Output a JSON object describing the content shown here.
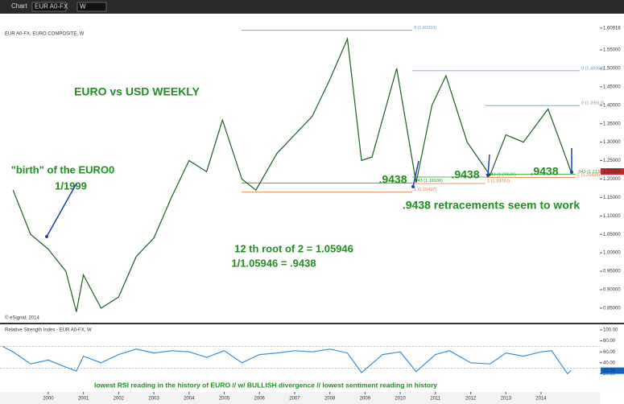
{
  "toolbar": {
    "window": "Chart",
    "symbol": "EUR A0-FX",
    "interval": "W"
  },
  "chart_data": [
    {
      "type": "line",
      "title": "EUR A0-FX, EURO COMPOSITE, W",
      "series": [
        {
          "name": "EUR A0-FX",
          "color": "#1b5e20",
          "x": [
            1999.0,
            1999.5,
            2000.0,
            2000.5,
            2000.8,
            2001.0,
            2001.5,
            2002.0,
            2002.5,
            2003.0,
            2003.5,
            2004.0,
            2004.5,
            2004.95,
            2005.5,
            2005.9,
            2006.5,
            2007.0,
            2007.5,
            2008.0,
            2008.5,
            2008.9,
            2009.2,
            2009.9,
            2010.45,
            2010.9,
            2011.3,
            2011.9,
            2012.55,
            2013.0,
            2013.5,
            2014.2,
            2014.7,
            2014.85
          ],
          "values": [
            1.17,
            1.05,
            1.01,
            0.95,
            0.84,
            0.94,
            0.85,
            0.88,
            0.99,
            1.04,
            1.15,
            1.25,
            1.22,
            1.36,
            1.2,
            1.17,
            1.27,
            1.32,
            1.37,
            1.47,
            1.58,
            1.25,
            1.26,
            1.5,
            1.19,
            1.4,
            1.48,
            1.3,
            1.21,
            1.32,
            1.3,
            1.39,
            1.26,
            1.22
          ]
        }
      ],
      "xlim": [
        1998.63,
        2015.67
      ],
      "ylim": [
        0.817,
        1.609
      ],
      "yticks": [
        {
          "value": 0.85,
          "label": "0.85000"
        },
        {
          "value": 0.9,
          "label": "0.90000"
        },
        {
          "value": 0.95,
          "label": "0.95000"
        },
        {
          "value": 1.0,
          "label": "1.00000"
        },
        {
          "value": 1.05,
          "label": "1.05000"
        },
        {
          "value": 1.1,
          "label": "1.10000"
        },
        {
          "value": 1.15,
          "label": "1.15000"
        },
        {
          "value": 1.2,
          "label": "1.20000"
        },
        {
          "value": 1.25,
          "label": "1.25000"
        },
        {
          "value": 1.3,
          "label": "1.30000"
        },
        {
          "value": 1.35,
          "label": "1.35000"
        },
        {
          "value": 1.4,
          "label": "1.40000"
        },
        {
          "value": 1.45,
          "label": "1.45000"
        },
        {
          "value": 1.5,
          "label": "1.50000"
        },
        {
          "value": 1.55,
          "label": "1.55000"
        },
        {
          "value": 1.60918,
          "label": "1.60918"
        }
      ],
      "last_price": {
        "value": 1.22058,
        "label": "1.22058"
      },
      "levels": [
        {
          "label": "0 (1.60310)",
          "value": 1.6031,
          "color": "#5b9bd5"
        },
        {
          "label": "0 (1.49362)",
          "value": 1.49362,
          "color": "#5b9bd5"
        },
        {
          "label": "0 (1.39913)",
          "value": 1.39913,
          "color": "#5b9bd5"
        },
        {
          "label": ".943 (1.18938)",
          "value": 1.18938,
          "color": "#2e9e2e"
        },
        {
          "label": "1 (1.16437)",
          "value": 1.16437,
          "color": "#e07b39"
        },
        {
          "label": ".943 (1.20536)",
          "value": 1.20536,
          "color": "#2e9e2e"
        },
        {
          "label": "1 (1.18783)",
          "value": 1.18783,
          "color": "#e07b39"
        },
        {
          "label": ".943 (1.21301)",
          "value": 1.21301,
          "color": "#2e9e2e"
        },
        {
          "label": "1 (1.20435)",
          "value": 1.20435,
          "color": "#e07b39"
        }
      ],
      "annotations": [
        "EURO vs USD WEEKLY",
        "\"birth\" of the EURO0",
        "1/1999",
        ".9438",
        ".9438",
        ".9438",
        ".9438 retracements seem to work",
        "12 th root of 2 = 1.05946",
        "1/1.05946 = .9438"
      ],
      "credit": "© eSignal, 2014"
    },
    {
      "type": "line",
      "title": "Relative Strength Index - EUR A0-FX, W",
      "series": [
        {
          "name": "RSI",
          "color": "#3a8fd8",
          "x": [
            1998.7,
            1999.0,
            1999.5,
            2000.0,
            2000.5,
            2000.8,
            2001.0,
            2001.5,
            2002.0,
            2002.5,
            2003.0,
            2003.5,
            2004.0,
            2004.5,
            2005.0,
            2005.5,
            2006.0,
            2006.5,
            2007.0,
            2007.5,
            2008.0,
            2008.5,
            2008.9,
            2009.5,
            2010.0,
            2010.45,
            2011.0,
            2011.4,
            2012.0,
            2012.55,
            2013.0,
            2013.5,
            2014.0,
            2014.3,
            2014.75,
            2014.85
          ],
          "values": [
            70,
            60,
            38,
            45,
            32,
            25,
            52,
            40,
            55,
            65,
            58,
            62,
            60,
            50,
            62,
            40,
            55,
            58,
            62,
            60,
            65,
            58,
            22,
            55,
            60,
            24,
            55,
            62,
            40,
            38,
            58,
            52,
            60,
            62,
            20,
            25.58
          ]
        }
      ],
      "xlim": [
        1998.63,
        2015.67
      ],
      "ylim": [
        0,
        100
      ],
      "xticks": [
        2000,
        2001,
        2002,
        2003,
        2004,
        2005,
        2006,
        2007,
        2008,
        2009,
        2010,
        2011,
        2012,
        2013,
        2014
      ],
      "yticks": [
        {
          "value": 20,
          "label": "20.00"
        },
        {
          "value": 40,
          "label": "40.00"
        },
        {
          "value": 60,
          "label": "60.00"
        },
        {
          "value": 80,
          "label": "80.00"
        },
        {
          "value": 100,
          "label": "100.00"
        }
      ],
      "bands": [
        70,
        30
      ],
      "last_value": {
        "value": 25.58,
        "label": "25.58"
      },
      "annotation": "lowest RSI reading in the history of EURO // w/ BULLISH divergence // lowest sentiment reading in history"
    }
  ]
}
